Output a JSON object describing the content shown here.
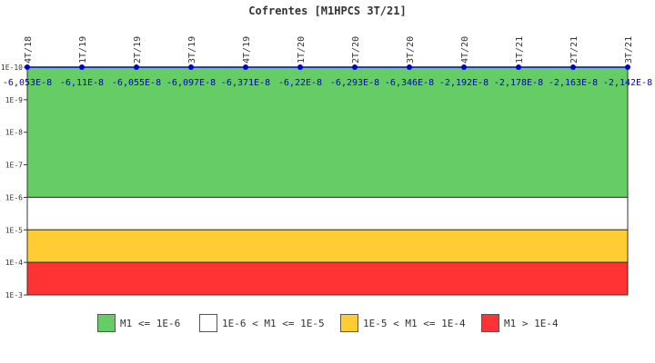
{
  "chart_data": {
    "type": "line",
    "title": "Cofrentes [M1HPCS 3T/21]",
    "categories": [
      "4T/18",
      "1T/19",
      "2T/19",
      "3T/19",
      "4T/19",
      "1T/20",
      "2T/20",
      "3T/20",
      "4T/20",
      "1T/21",
      "2T/21",
      "3T/21"
    ],
    "series": [
      {
        "values": [
          -6.053e-08,
          -6.11e-08,
          -6.055e-08,
          -6.097e-08,
          -6.371e-08,
          -6.22e-08,
          -6.293e-08,
          -6.346e-08,
          -2.192e-08,
          -2.178e-08,
          -2.163e-08,
          -2.142e-08
        ],
        "value_labels": [
          "-6,053E-8",
          "-6,11E-8",
          "-6,055E-8",
          "-6,097E-8",
          "-6,371E-8",
          "-6,22E-8",
          "-6,293E-8",
          "-6,346E-8",
          "-2,192E-8",
          "-2,178E-8",
          "-2,163E-8",
          "-2,142E-8"
        ],
        "color": "#0000cc"
      }
    ],
    "yaxis": {
      "scale": "log",
      "reversed": true,
      "range": [
        1e-10,
        0.001
      ],
      "tick_labels": [
        "1E-10",
        "1E-9",
        "1E-8",
        "1E-7",
        "1E-6",
        "1E-5",
        "1E-4",
        "1E-3"
      ]
    },
    "bands": [
      {
        "from": 1e-10,
        "to": 1e-06,
        "color": "#66cc66",
        "label": "M1 <= 1E-6"
      },
      {
        "from": 1e-06,
        "to": 1e-05,
        "color": "#ffffff",
        "label": "1E-6 < M1 <= 1E-5"
      },
      {
        "from": 1e-05,
        "to": 0.0001,
        "color": "#ffcc33",
        "label": "1E-5 < M1 <= 1E-4"
      },
      {
        "from": 0.0001,
        "to": 0.001,
        "color": "#ff3333",
        "label": "M1 > 1E-4"
      }
    ],
    "legend_position": "bottom",
    "grid": false
  }
}
